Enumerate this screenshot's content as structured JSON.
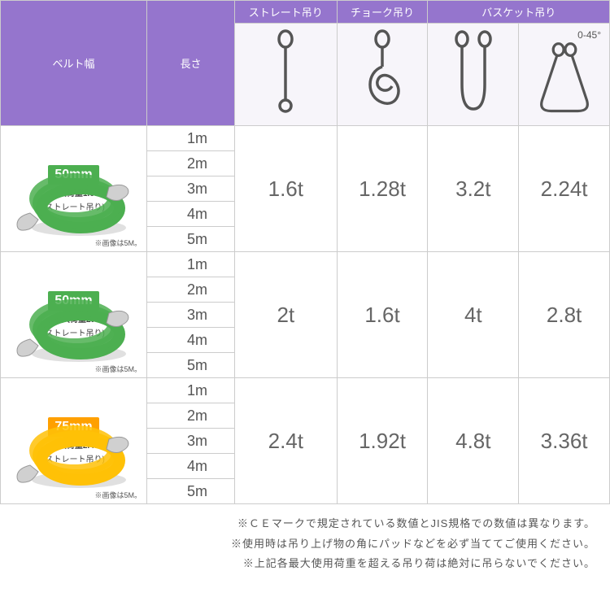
{
  "headers": {
    "belt_width": "ベルト幅",
    "length": "長さ",
    "straight": "ストレート吊り",
    "choke": "チョーク吊り",
    "basket": "バスケット吊り",
    "angle": "0-45°"
  },
  "lengths": [
    "1m",
    "2m",
    "3m",
    "4m",
    "5m"
  ],
  "products": [
    {
      "badge": "50mm",
      "badge_class": "badge-g",
      "sub": "最大荷重1.6t",
      "sub2": "(ストレート吊り)",
      "note": "※画像は5M。",
      "color": "#4caf50",
      "vals": {
        "straight": "1.6t",
        "choke": "1.28t",
        "basket1": "3.2t",
        "basket2": "2.24t"
      }
    },
    {
      "badge": "50mm",
      "badge_class": "badge-g",
      "sub": "最大荷重2t",
      "sub2": "(ストレート吊り)",
      "note": "※画像は5M。",
      "color": "#4caf50",
      "vals": {
        "straight": "2t",
        "choke": "1.6t",
        "basket1": "4t",
        "basket2": "2.8t"
      }
    },
    {
      "badge": "75mm",
      "badge_class": "badge-y",
      "sub": "最大荷重2.4t",
      "sub2": "(ストレート吊り)",
      "note": "※画像は5M。",
      "color": "#ffc107",
      "vals": {
        "straight": "2.4t",
        "choke": "1.92t",
        "basket1": "4.8t",
        "basket2": "3.36t"
      }
    }
  ],
  "footnotes": [
    "※ＣＥマークで規定されている数値とJIS規格での数値は異なります。",
    "※使用時は吊り上げ物の角にパッドなどを必ず当ててご使用ください。",
    "※上記各最大使用荷重を超える吊り荷は絶対に吊らないでください。"
  ],
  "colors": {
    "header_bg": "#9575cd",
    "icon_bg": "#f7f5fa",
    "border": "#cccccc",
    "text": "#666666",
    "stroke": "#555555"
  }
}
